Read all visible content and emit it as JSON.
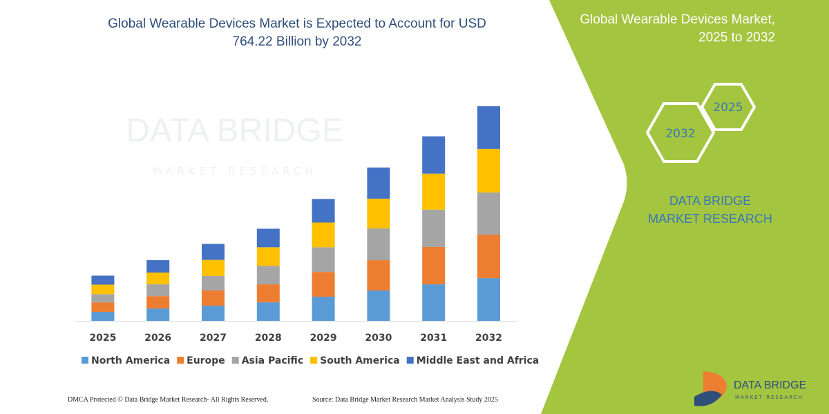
{
  "chart_data": {
    "type": "stacked-bar",
    "title": "Global Wearable Devices Market is Expected to Account for USD 764.22 Billion by 2032",
    "categories": [
      "2025",
      "2026",
      "2027",
      "2028",
      "2029",
      "2030",
      "2031",
      "2032"
    ],
    "series": [
      {
        "name": "North America",
        "color": "#5b9bd5",
        "values": [
          32,
          44,
          54,
          66,
          86,
          108,
          130,
          152
        ]
      },
      {
        "name": "Europe",
        "color": "#ed7d31",
        "values": [
          34,
          44,
          54,
          64,
          88,
          108,
          133,
          155
        ]
      },
      {
        "name": "Asia Pacific",
        "color": "#a5a5a5",
        "values": [
          29,
          42,
          52,
          66,
          88,
          113,
          133,
          150
        ]
      },
      {
        "name": "South America",
        "color": "#ffc000",
        "values": [
          34,
          42,
          57,
          66,
          88,
          106,
          128,
          155
        ]
      },
      {
        "name": "Middle East and Africa",
        "color": "#4472c4",
        "values": [
          32,
          44,
          57,
          66,
          84,
          111,
          133,
          152
        ]
      }
    ]
  },
  "watermark": {
    "name": "DATA BRIDGE",
    "tagline": "MARKET RESEARCH"
  },
  "panel": {
    "title": "Global Wearable Devices Market, 2025 to 2032",
    "start_year": "2025",
    "end_year": "2032",
    "brand": "DATA BRIDGE MARKET RESEARCH"
  },
  "logo": {
    "name": "DATA BRIDGE",
    "tagline": "MARKET RESEARCH"
  },
  "footer": {
    "copyright": "DMCA Protected © Data Bridge Market Research- All Rights Reserved.",
    "source": "Source: Data Bridge Market Research Market Analysis Study 2025"
  }
}
